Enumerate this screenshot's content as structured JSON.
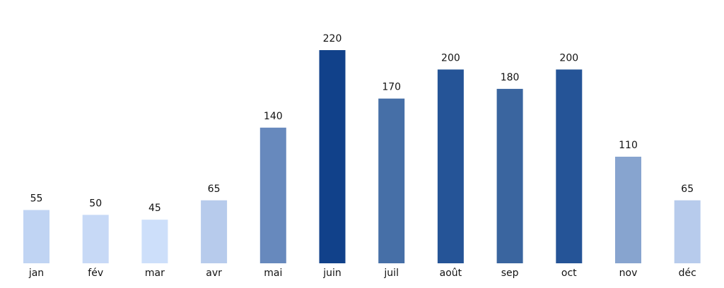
{
  "chart_data": {
    "type": "bar",
    "title": "",
    "xlabel": "",
    "ylabel": "",
    "categories": [
      "jan",
      "fév",
      "mar",
      "avr",
      "mai",
      "juin",
      "juil",
      "août",
      "sep",
      "oct",
      "nov",
      "déc"
    ],
    "values": [
      55,
      50,
      45,
      65,
      140,
      220,
      170,
      200,
      180,
      200,
      110,
      65
    ],
    "colors": [
      "#c0d4f3",
      "#c7d9f6",
      "#cddffa",
      "#b7cbec",
      "#6789bd",
      "#11418a",
      "#466fa7",
      "#255497",
      "#3a659f",
      "#255497",
      "#87a4cf",
      "#b7cbec"
    ],
    "ylim": [
      0,
      220
    ],
    "grid": false,
    "data_labels": true
  }
}
